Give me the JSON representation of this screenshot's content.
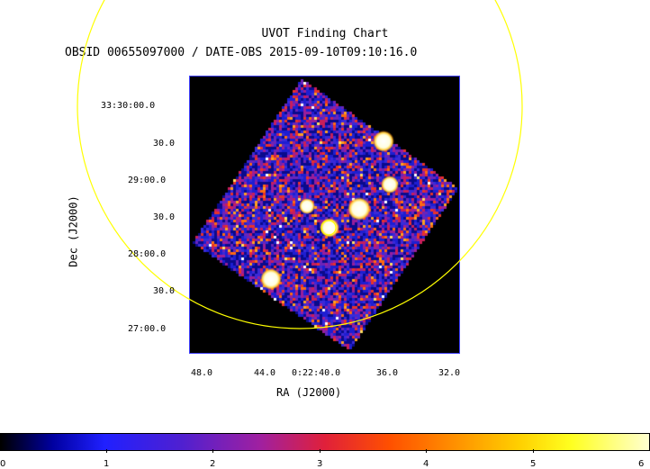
{
  "header": {
    "title": "UVOT Finding Chart",
    "subtitle": "OBSID 00655097000 / DATE-OBS 2015-09-10T09:10:16.0"
  },
  "axes": {
    "xlabel": "RA (J2000)",
    "ylabel": "Dec (J2000)",
    "ra_ticks": [
      "48.0",
      "44.0",
      "0:22:40.0",
      "36.0",
      "32.0"
    ],
    "dec_ticks": [
      "33:30:00.0",
      "30.0",
      "29:00.0",
      "30.0",
      "28:00.0",
      "30.0",
      "27:00.0"
    ]
  },
  "colorbar": {
    "ticks": [
      "0",
      "1",
      "2",
      "3",
      "4",
      "5",
      "6"
    ]
  },
  "colors": {
    "circle": "#ffff00",
    "frame_border": "#4040ff"
  }
}
